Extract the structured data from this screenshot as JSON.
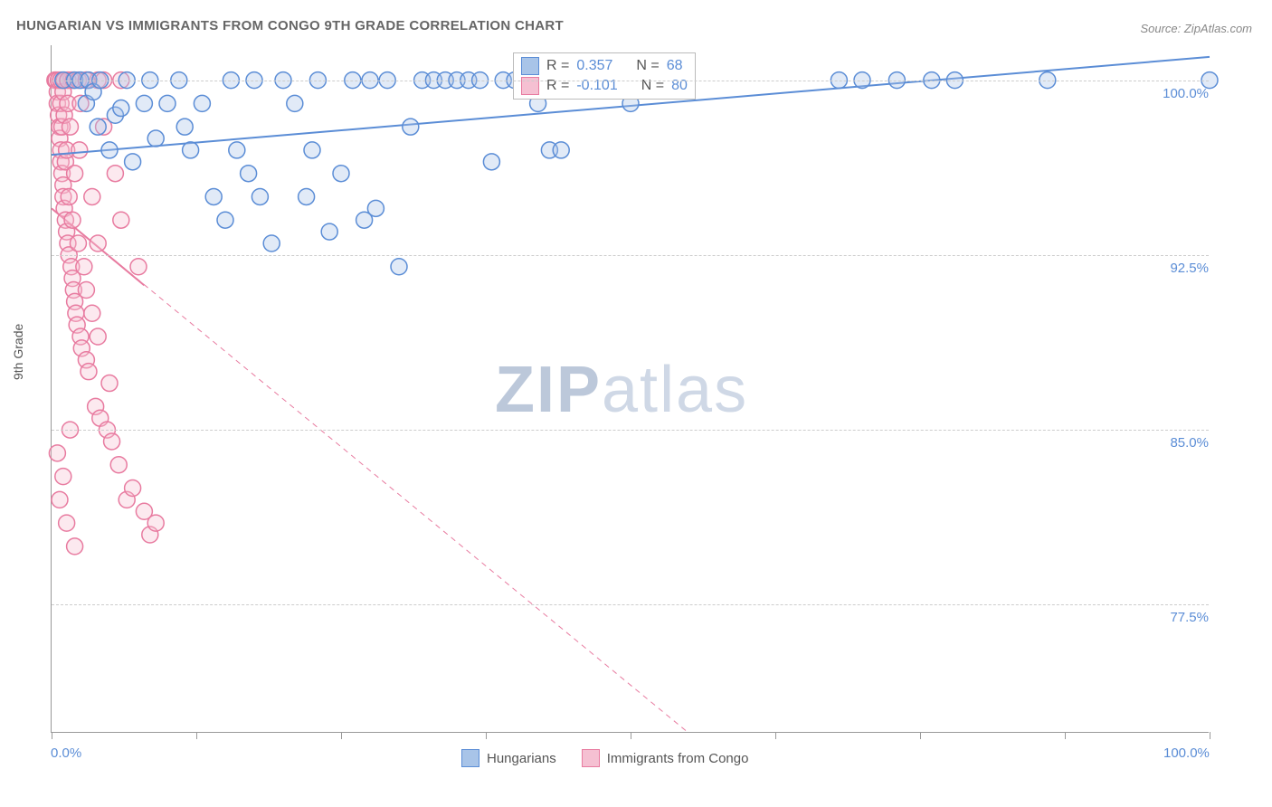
{
  "title": "HUNGARIAN VS IMMIGRANTS FROM CONGO 9TH GRADE CORRELATION CHART",
  "source": "Source: ZipAtlas.com",
  "watermark_zip": "ZIP",
  "watermark_atlas": "atlas",
  "y_axis_title": "9th Grade",
  "chart": {
    "type": "scatter-with-trend",
    "xlim": [
      0,
      100
    ],
    "ylim": [
      72,
      101.5
    ],
    "y_ticks": [
      77.5,
      85.0,
      92.5,
      100.0
    ],
    "y_tick_labels": [
      "77.5%",
      "85.0%",
      "92.5%",
      "100.0%"
    ],
    "x_ticks": [
      0,
      12.5,
      25,
      37.5,
      50,
      62.5,
      75,
      87.5,
      100
    ],
    "x_tick_labels_shown": {
      "0": "0.0%",
      "100": "100.0%"
    },
    "grid_color": "#cccccc",
    "background_color": "#ffffff",
    "axis_color": "#999999",
    "tick_label_color": "#5b8dd6",
    "marker_radius": 9,
    "marker_stroke_width": 1.5,
    "marker_fill_opacity": 0.35,
    "series": [
      {
        "name": "Hungarians",
        "color_stroke": "#5b8dd6",
        "color_fill": "#a8c4e8",
        "r_label_prefix": "R = ",
        "r_value": "0.357",
        "n_label_prefix": "N = ",
        "n_value": "68",
        "trend": {
          "x1": 0,
          "y1": 96.8,
          "x2": 100,
          "y2": 101.0,
          "width": 2,
          "dash": "none"
        },
        "points": [
          [
            1,
            100
          ],
          [
            2,
            100
          ],
          [
            2.5,
            100
          ],
          [
            3,
            99
          ],
          [
            3.2,
            100
          ],
          [
            3.6,
            99.5
          ],
          [
            4,
            98
          ],
          [
            4.2,
            100
          ],
          [
            5,
            97
          ],
          [
            5.5,
            98.5
          ],
          [
            6,
            98.8
          ],
          [
            6.5,
            100
          ],
          [
            7,
            96.5
          ],
          [
            8,
            99
          ],
          [
            8.5,
            100
          ],
          [
            9,
            97.5
          ],
          [
            10,
            99
          ],
          [
            11,
            100
          ],
          [
            11.5,
            98
          ],
          [
            12,
            97
          ],
          [
            13,
            99
          ],
          [
            14,
            95
          ],
          [
            15,
            94
          ],
          [
            15.5,
            100
          ],
          [
            16,
            97
          ],
          [
            17,
            96
          ],
          [
            17.5,
            100
          ],
          [
            18,
            95
          ],
          [
            19,
            93
          ],
          [
            20,
            100
          ],
          [
            21,
            99
          ],
          [
            22,
            95
          ],
          [
            22.5,
            97
          ],
          [
            23,
            100
          ],
          [
            24,
            93.5
          ],
          [
            25,
            96
          ],
          [
            26,
            100
          ],
          [
            27,
            94
          ],
          [
            27.5,
            100
          ],
          [
            28,
            94.5
          ],
          [
            29,
            100
          ],
          [
            30,
            92
          ],
          [
            31,
            98
          ],
          [
            32,
            100
          ],
          [
            33,
            100
          ],
          [
            34,
            100
          ],
          [
            35,
            100
          ],
          [
            36,
            100
          ],
          [
            37,
            100
          ],
          [
            38,
            96.5
          ],
          [
            39,
            100
          ],
          [
            40,
            100
          ],
          [
            41,
            100
          ],
          [
            42,
            99
          ],
          [
            43,
            97
          ],
          [
            44,
            97
          ],
          [
            45,
            100
          ],
          [
            46,
            100
          ],
          [
            47,
            100
          ],
          [
            48,
            100
          ],
          [
            50,
            99
          ],
          [
            68,
            100
          ],
          [
            70,
            100
          ],
          [
            73,
            100
          ],
          [
            76,
            100
          ],
          [
            78,
            100
          ],
          [
            86,
            100
          ],
          [
            100,
            100
          ]
        ]
      },
      {
        "name": "Immigrants from Congo",
        "color_stroke": "#e87ba0",
        "color_fill": "#f5c0d2",
        "r_label_prefix": "R = ",
        "r_value": "-0.101",
        "n_label_prefix": "N = ",
        "n_value": "80",
        "trend": {
          "x1": 0,
          "y1": 94.5,
          "x2": 55,
          "y2": 72,
          "width": 1,
          "dash": "6,5"
        },
        "trend_solid_part": {
          "x1": 0,
          "y1": 94.5,
          "x2": 8,
          "y2": 91.2
        },
        "points": [
          [
            0.3,
            100
          ],
          [
            0.4,
            100
          ],
          [
            0.5,
            99.5
          ],
          [
            0.5,
            99
          ],
          [
            0.6,
            98.5
          ],
          [
            0.6,
            100
          ],
          [
            0.7,
            98
          ],
          [
            0.7,
            97.5
          ],
          [
            0.8,
            97
          ],
          [
            0.8,
            99
          ],
          [
            0.8,
            96.5
          ],
          [
            0.9,
            98
          ],
          [
            0.9,
            96
          ],
          [
            1,
            95.5
          ],
          [
            1,
            99.5
          ],
          [
            1,
            95
          ],
          [
            1.1,
            94.5
          ],
          [
            1.1,
            98.5
          ],
          [
            1.2,
            94
          ],
          [
            1.2,
            96.5
          ],
          [
            1.3,
            93.5
          ],
          [
            1.3,
            97
          ],
          [
            1.4,
            93
          ],
          [
            1.4,
            99
          ],
          [
            1.5,
            92.5
          ],
          [
            1.5,
            95
          ],
          [
            1.6,
            98
          ],
          [
            1.7,
            92
          ],
          [
            1.7,
            100
          ],
          [
            1.8,
            91.5
          ],
          [
            1.8,
            94
          ],
          [
            1.9,
            91
          ],
          [
            2,
            90.5
          ],
          [
            2,
            96
          ],
          [
            2.1,
            90
          ],
          [
            2.2,
            89.5
          ],
          [
            2.3,
            93
          ],
          [
            2.4,
            97
          ],
          [
            2.5,
            89
          ],
          [
            2.5,
            99
          ],
          [
            2.6,
            88.5
          ],
          [
            2.8,
            92
          ],
          [
            3,
            88
          ],
          [
            3,
            91
          ],
          [
            3.2,
            87.5
          ],
          [
            3.5,
            90
          ],
          [
            3.5,
            95
          ],
          [
            3.8,
            86
          ],
          [
            4,
            89
          ],
          [
            4,
            93
          ],
          [
            4.2,
            85.5
          ],
          [
            4.5,
            98
          ],
          [
            4.8,
            85
          ],
          [
            5,
            87
          ],
          [
            5.2,
            84.5
          ],
          [
            5.5,
            96
          ],
          [
            5.8,
            83.5
          ],
          [
            6,
            94
          ],
          [
            6.5,
            82
          ],
          [
            7,
            82.5
          ],
          [
            7.5,
            92
          ],
          [
            8,
            81.5
          ],
          [
            8.5,
            80.5
          ],
          [
            9,
            81
          ],
          [
            0.8,
            100
          ],
          [
            1.1,
            100
          ],
          [
            1.4,
            100
          ],
          [
            1.9,
            100
          ],
          [
            2.3,
            100
          ],
          [
            3,
            100
          ],
          [
            4,
            100
          ],
          [
            0.5,
            84
          ],
          [
            0.7,
            82
          ],
          [
            1,
            83
          ],
          [
            1.3,
            81
          ],
          [
            1.6,
            85
          ],
          [
            2,
            80
          ],
          [
            3,
            100
          ],
          [
            4.5,
            100
          ],
          [
            6,
            100
          ]
        ]
      }
    ]
  },
  "legend_bottom": {
    "items": [
      {
        "label": "Hungarians",
        "fill": "#a8c4e8",
        "stroke": "#5b8dd6"
      },
      {
        "label": "Immigrants from Congo",
        "fill": "#f5c0d2",
        "stroke": "#e87ba0"
      }
    ]
  }
}
